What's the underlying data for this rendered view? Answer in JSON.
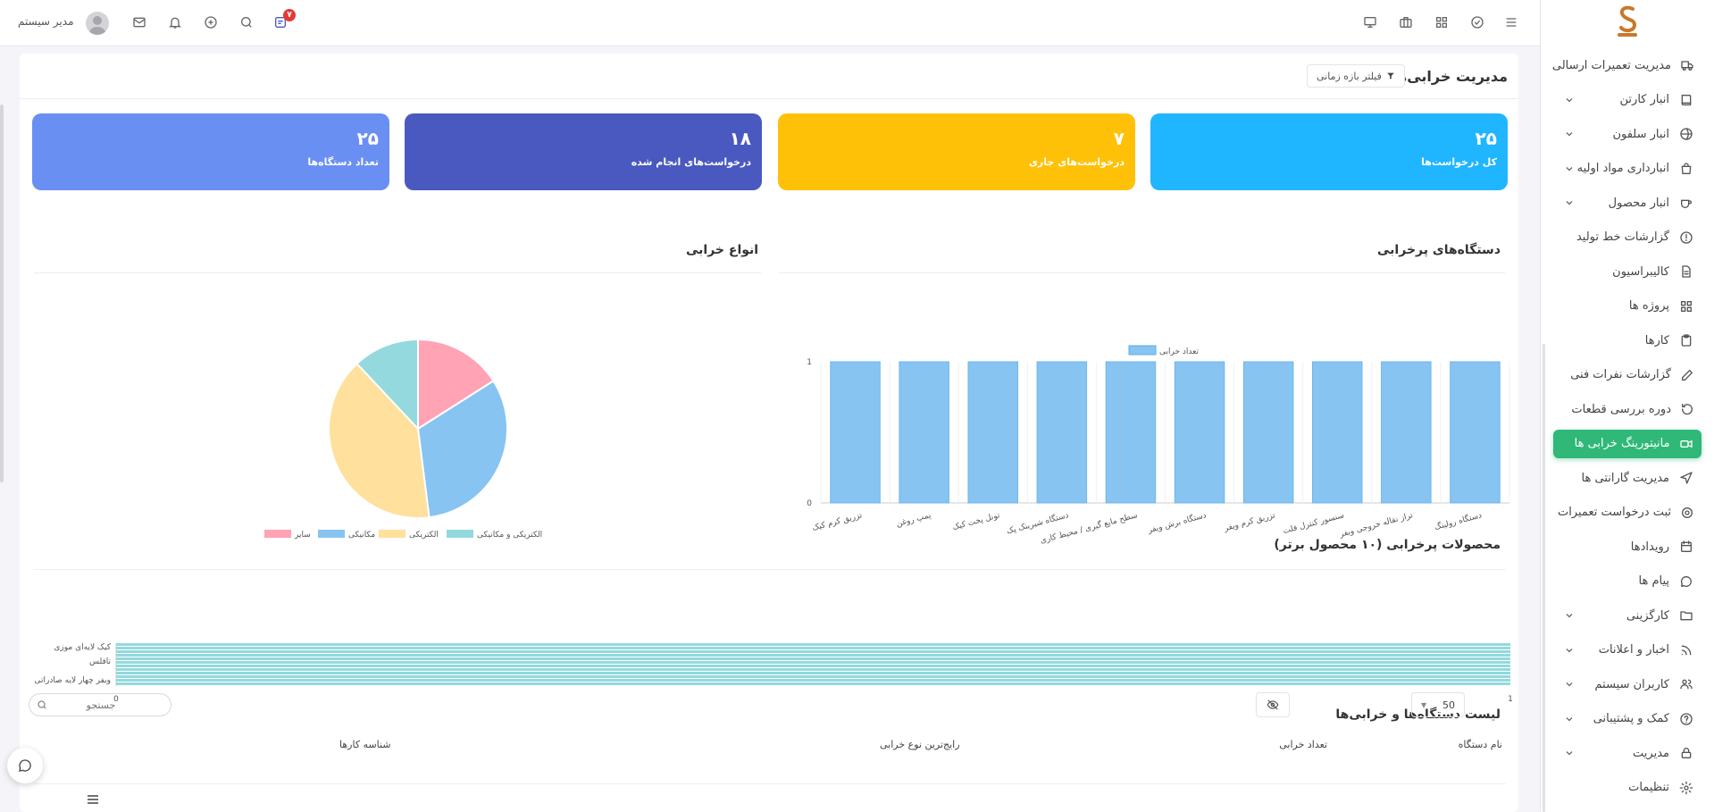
{
  "sidebar": {
    "items": [
      {
        "label": "مدیریت تعمیرات ارسالی",
        "icon": "truck-icon",
        "chevron": false
      },
      {
        "label": "انبار کارتن",
        "icon": "book-icon",
        "chevron": true
      },
      {
        "label": "انبار سلفون",
        "icon": "globe-icon",
        "chevron": true
      },
      {
        "label": "انبارداری مواد اولیه",
        "icon": "bag-icon",
        "chevron": true
      },
      {
        "label": "انبار محصول",
        "icon": "cup-icon",
        "chevron": true
      },
      {
        "label": "گزارشات خط تولید",
        "icon": "alert-circle-icon",
        "chevron": false
      },
      {
        "label": "کالیبراسیون",
        "icon": "file-icon",
        "chevron": false
      },
      {
        "label": "پروژه ها",
        "icon": "grid-icon",
        "chevron": false
      },
      {
        "label": "کارها",
        "icon": "clipboard-icon",
        "chevron": false
      },
      {
        "label": "گزارشات نفرات فنی",
        "icon": "edit-icon",
        "chevron": false
      },
      {
        "label": "دوره بررسی قطعات",
        "icon": "refresh-icon",
        "chevron": false
      },
      {
        "label": "مانیتورینگ خرابی ها",
        "icon": "video-icon",
        "chevron": false,
        "active": true
      },
      {
        "label": "مدیریت گارانتی ها",
        "icon": "send-icon",
        "chevron": false
      },
      {
        "label": "ثبت درخواست تعمیرات",
        "icon": "settings-icon",
        "chevron": false
      },
      {
        "label": "رویدادها",
        "icon": "calendar-icon",
        "chevron": false
      },
      {
        "label": "پیام ها",
        "icon": "message-icon",
        "chevron": false
      },
      {
        "label": "کارگزینی",
        "icon": "folder-icon",
        "chevron": true
      },
      {
        "label": "اخبار و اعلانات",
        "icon": "rss-icon",
        "chevron": true
      },
      {
        "label": "کاربران سیستم",
        "icon": "users-icon",
        "chevron": true
      },
      {
        "label": "کمک و پشتیبانی",
        "icon": "help-icon",
        "chevron": true
      },
      {
        "label": "مدیریت",
        "icon": "lock-icon",
        "chevron": true
      },
      {
        "label": "تنظیمات",
        "icon": "gear-icon",
        "chevron": false
      }
    ]
  },
  "topbar": {
    "user_name": "مدیر سیستم",
    "notification_count": "۷"
  },
  "page": {
    "title": "مدیریت خرابی‌ها",
    "filter_label": "فیلتر بازه زمانی"
  },
  "stats": [
    {
      "value": "۲۵",
      "label": "کل درخواست‌ها",
      "color": "#1fb6ff"
    },
    {
      "value": "۷",
      "label": "درخواست‌های جاری",
      "color": "#ffc107"
    },
    {
      "value": "۱۸",
      "label": "درخواست‌های انجام شده",
      "color": "#4a59bf"
    },
    {
      "value": "۲۵",
      "label": "تعداد دستگاه‌ها",
      "color": "#6a8ff3"
    }
  ],
  "sections": {
    "devices_title": "دستگاه‌های پرخرابی",
    "types_title": "انواع خرابی",
    "products_title": "محصولات پرخرابی (۱۰ محصول برتر)",
    "list_title": "لیست دستگاه‌ها و خرابی‌ها"
  },
  "chart_data": [
    {
      "type": "bar",
      "title": "دستگاه‌های پرخرابی",
      "legend": [
        "تعداد خرابی"
      ],
      "categories": [
        "دستگاه رولینگ",
        "تراز نقاله خروجی ویفر",
        "سنسور کنترل فلت",
        "تزریق کرم ویفر",
        "دستگاه برش ویفر",
        "سطح مایع گیری / محیط کاری",
        "دستگاه شیرینک پک",
        "تونل پخت کیک",
        "پمپ روغن",
        "تزریق کرم کیک"
      ],
      "series": [
        {
          "name": "تعداد خرابی",
          "values": [
            1,
            1,
            1,
            1,
            1,
            1,
            1,
            1,
            1,
            1
          ]
        }
      ],
      "ylim": [
        0,
        1
      ],
      "color": "#87c4f1"
    },
    {
      "type": "pie",
      "title": "انواع خرابی",
      "labels": [
        "سایر",
        "مکانیکی",
        "الکتریکی",
        "الکتریکی و مکانیکی"
      ],
      "values": [
        4,
        8,
        10,
        3
      ],
      "colors": [
        "#ffa3b5",
        "#87c4f1",
        "#ffe09c",
        "#93d9dd"
      ],
      "legend_position": "bottom"
    },
    {
      "type": "bar",
      "orientation": "horizontal",
      "title": "محصولات پرخرابی (۱۰ محصول برتر)",
      "categories": [
        "کیک لایه‌ای موزی",
        "تافلس",
        "ویفر چهار لایه صادراتی"
      ],
      "values": [
        1,
        1,
        1
      ],
      "xlim": [
        0,
        1
      ],
      "color": "#93d9dd"
    }
  ],
  "table": {
    "search_placeholder": "جستجو",
    "page_size": "50",
    "columns": [
      "نام دستگاه",
      "تعداد خرابی",
      "رایج‌ترین نوع خرابی",
      "شناسه کارها"
    ]
  }
}
